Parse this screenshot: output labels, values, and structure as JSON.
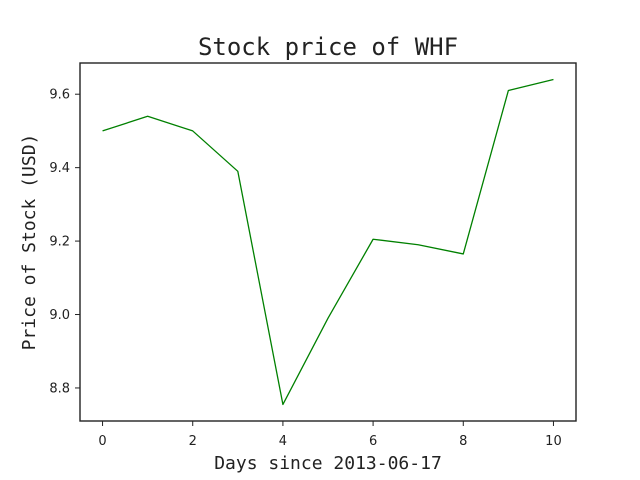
{
  "chart_data": {
    "type": "line",
    "title": "Stock price of WHF",
    "xlabel": "Days since 2013-06-17",
    "ylabel": "Price of Stock (USD)",
    "x": [
      0,
      1,
      2,
      3,
      4,
      5,
      6,
      7,
      8,
      9,
      10
    ],
    "series": [
      {
        "values": [
          9.5,
          9.54,
          9.5,
          9.39,
          8.755,
          8.99,
          9.205,
          9.19,
          9.165,
          9.61,
          9.64
        ],
        "color": "#008000"
      }
    ],
    "xlim": [
      -0.5,
      10.5
    ],
    "ylim": [
      8.71,
      9.685
    ],
    "xticks": [
      0,
      2,
      4,
      6,
      8,
      10
    ],
    "yticks": [
      8.8,
      9.0,
      9.2,
      9.4,
      9.6
    ],
    "xtick_labels": [
      "0",
      "2",
      "4",
      "6",
      "8",
      "10"
    ],
    "ytick_labels": [
      "8.8",
      "9.0",
      "9.2",
      "9.4",
      "9.6"
    ],
    "grid": false,
    "legend": "none"
  }
}
